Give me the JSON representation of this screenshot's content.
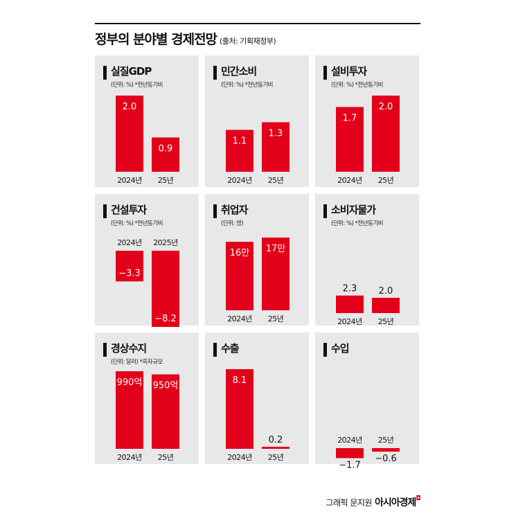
{
  "header": {
    "title": "정부의 분야별 경제전망",
    "source": "(출처: 기획재정부)"
  },
  "footer": {
    "credit": "그래픽 문지원",
    "brand": "아시아경제"
  },
  "chart_data": [
    {
      "type": "bar",
      "title": "실질GDP",
      "subtitle": "(단위: %) *전년동기비",
      "categories": [
        "2024년",
        "25년"
      ],
      "values": [
        2.0,
        0.9
      ],
      "labels": [
        "2.0",
        "0.9"
      ],
      "label_pos": [
        "inside",
        "inside"
      ],
      "cat_pos": "bottom",
      "ylim": [
        0,
        2.0
      ]
    },
    {
      "type": "bar",
      "title": "민간소비",
      "subtitle": "(단위: %) *전년동기비",
      "categories": [
        "2024년",
        "25년"
      ],
      "values": [
        1.1,
        1.3
      ],
      "labels": [
        "1.1",
        "1.3"
      ],
      "label_pos": [
        "inside",
        "inside"
      ],
      "cat_pos": "bottom",
      "ylim": [
        0,
        2.0
      ]
    },
    {
      "type": "bar",
      "title": "설비투자",
      "subtitle": "(단위: %) *전년동기비",
      "categories": [
        "2024년",
        "25년"
      ],
      "values": [
        1.7,
        2.0
      ],
      "labels": [
        "1.7",
        "2.0"
      ],
      "label_pos": [
        "inside",
        "inside"
      ],
      "cat_pos": "bottom",
      "ylim": [
        0,
        2.0
      ]
    },
    {
      "type": "bar",
      "title": "건설투자",
      "subtitle": "(단위: %) *전년동기비",
      "categories": [
        "2024년",
        "2025년"
      ],
      "values": [
        -3.3,
        -8.2
      ],
      "labels": [
        "−3.3",
        "−8.2"
      ],
      "label_pos": [
        "inside",
        "inside"
      ],
      "cat_pos": "top",
      "ylim": [
        -8.2,
        0
      ]
    },
    {
      "type": "bar",
      "title": "취업자",
      "subtitle": "(단위: 명)",
      "categories": [
        "2024년",
        "25년"
      ],
      "values": [
        16,
        17
      ],
      "labels": [
        "16만",
        "17만"
      ],
      "label_pos": [
        "inside",
        "inside"
      ],
      "cat_pos": "bottom",
      "ylim": [
        0,
        17
      ]
    },
    {
      "type": "bar",
      "title": "소비자물가",
      "subtitle": "(단위: %) *전년동기비",
      "categories": [
        "2024년",
        "25년"
      ],
      "values": [
        2.3,
        2.0
      ],
      "labels": [
        "2.3",
        "2.0"
      ],
      "label_pos": [
        "above",
        "above"
      ],
      "cat_pos": "bottom",
      "ylim": [
        0,
        8.0
      ]
    },
    {
      "type": "bar",
      "title": "경상수지",
      "subtitle": "(단위: 달러) *흑자규모",
      "categories": [
        "2024년",
        "25년"
      ],
      "values": [
        990,
        950
      ],
      "labels": [
        "990억",
        "950억"
      ],
      "label_pos": [
        "inside",
        "inside"
      ],
      "cat_pos": "bottom",
      "ylim": [
        0,
        990
      ]
    },
    {
      "type": "bar",
      "title": "수출",
      "subtitle": "",
      "categories": [
        "2024년",
        "25년"
      ],
      "values": [
        8.1,
        0.2
      ],
      "labels": [
        "8.1",
        "0.2"
      ],
      "label_pos": [
        "inside",
        "above"
      ],
      "cat_pos": "bottom",
      "ylim": [
        0,
        8.1
      ]
    },
    {
      "type": "bar",
      "title": "수입",
      "subtitle": "",
      "categories": [
        "2024년",
        "25년"
      ],
      "values": [
        -1.7,
        -0.6
      ],
      "labels": [
        "−1.7",
        "−0.6"
      ],
      "label_pos": [
        "below",
        "below"
      ],
      "cat_pos": "top",
      "ylim": [
        -8.0,
        0
      ]
    }
  ]
}
